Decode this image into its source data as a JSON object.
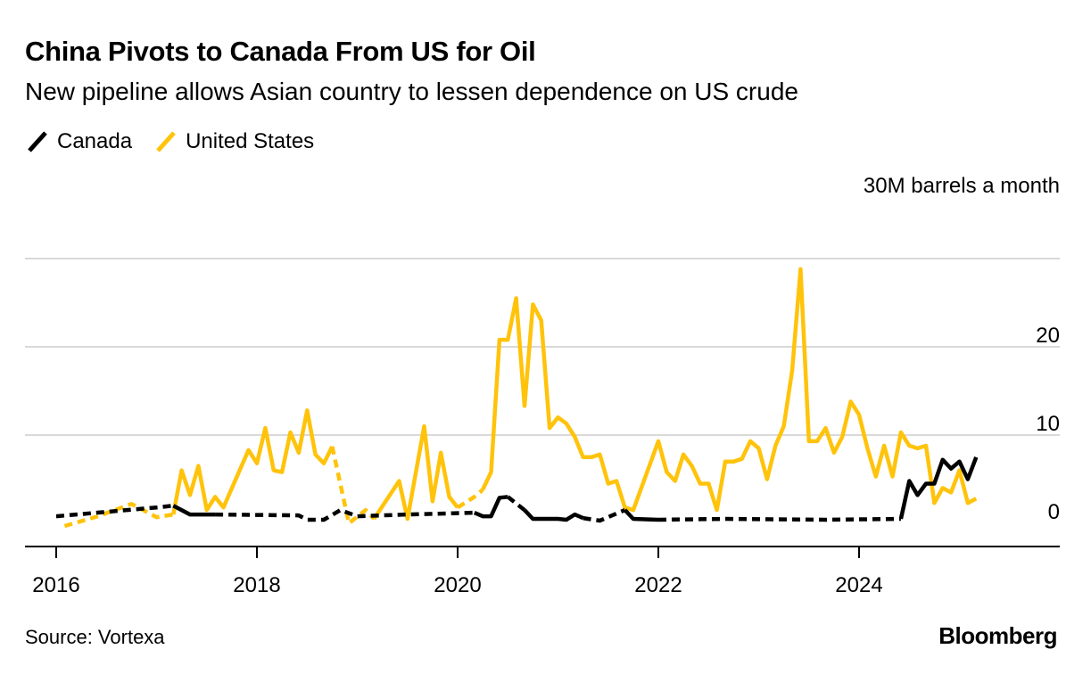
{
  "title": "China Pivots to Canada From US for Oil",
  "subtitle": "New pipeline allows Asian country to lessen dependence on US crude",
  "source": "Source: Vortexa",
  "logo": "Bloomberg",
  "colors": {
    "canada": "#000000",
    "us": "#FFC30B",
    "grid": "#d9d9d9",
    "axis": "#000000"
  },
  "chart_data": {
    "type": "line",
    "unit_label": "30M barrels a month",
    "x_ticks": [
      "2016",
      "2018",
      "2020",
      "2022",
      "2024"
    ],
    "y_ticks": [
      "0",
      "10",
      "20"
    ],
    "ylim": [
      -1,
      30
    ],
    "xlim": [
      "2015-10",
      "2025-12"
    ],
    "grid": true,
    "legend_position": "top-left",
    "series": [
      {
        "name": "Canada",
        "color": "#000000",
        "segments": [
          {
            "style": "dashed",
            "points": [
              [
                "2016-01",
                0.8
              ],
              [
                "2017-01",
                1.8
              ],
              [
                "2017-03",
                2.0
              ]
            ]
          },
          {
            "style": "solid",
            "points": [
              [
                "2017-03",
                2.0
              ],
              [
                "2017-05",
                1.0
              ],
              [
                "2017-08",
                1.0
              ]
            ]
          },
          {
            "style": "dashed",
            "points": [
              [
                "2017-08",
                1.0
              ],
              [
                "2018-06",
                0.9
              ],
              [
                "2018-07",
                0.4
              ],
              [
                "2018-09",
                0.4
              ],
              [
                "2018-11",
                1.5
              ],
              [
                "2019-01",
                0.8
              ],
              [
                "2019-07",
                1.0
              ],
              [
                "2020-03",
                1.2
              ]
            ]
          },
          {
            "style": "solid",
            "points": [
              [
                "2020-03",
                1.2
              ],
              [
                "2020-04",
                0.8
              ],
              [
                "2020-05",
                0.8
              ],
              [
                "2020-06",
                2.9
              ],
              [
                "2020-07",
                3.0
              ]
            ]
          },
          {
            "style": "dashed",
            "points": [
              [
                "2020-07",
                3.0
              ],
              [
                "2020-09",
                1.5
              ]
            ]
          },
          {
            "style": "solid",
            "points": [
              [
                "2020-09",
                1.5
              ],
              [
                "2020-10",
                0.5
              ],
              [
                "2021-01",
                0.5
              ],
              [
                "2021-02",
                0.4
              ],
              [
                "2021-03",
                1.0
              ],
              [
                "2021-04",
                0.6
              ]
            ]
          },
          {
            "style": "dashed",
            "points": [
              [
                "2021-04",
                0.6
              ],
              [
                "2021-06",
                0.3
              ],
              [
                "2021-09",
                1.5
              ]
            ]
          },
          {
            "style": "solid",
            "points": [
              [
                "2021-09",
                1.5
              ],
              [
                "2021-10",
                0.5
              ],
              [
                "2022-01",
                0.4
              ]
            ]
          },
          {
            "style": "dashed",
            "points": [
              [
                "2022-01",
                0.4
              ],
              [
                "2022-09",
                0.5
              ],
              [
                "2023-09",
                0.4
              ],
              [
                "2024-06",
                0.5
              ]
            ]
          },
          {
            "style": "solid",
            "points": [
              [
                "2024-06",
                0.5
              ],
              [
                "2024-07",
                4.8
              ],
              [
                "2024-08",
                3.2
              ],
              [
                "2024-09",
                4.5
              ],
              [
                "2024-10",
                4.5
              ],
              [
                "2024-11",
                7.2
              ],
              [
                "2024-12",
                6.2
              ],
              [
                "2025-01",
                7.0
              ],
              [
                "2025-02",
                5.0
              ],
              [
                "2025-03",
                7.5
              ]
            ]
          }
        ]
      },
      {
        "name": "United States",
        "color": "#FFC30B",
        "segments": [
          {
            "style": "dashed",
            "points": [
              [
                "2016-02",
                -0.3
              ],
              [
                "2016-06",
                0.8
              ],
              [
                "2016-10",
                2.2
              ],
              [
                "2017-01",
                0.7
              ],
              [
                "2017-03",
                1.0
              ]
            ]
          },
          {
            "style": "solid",
            "points": [
              [
                "2017-03",
                1.0
              ],
              [
                "2017-04",
                6.0
              ],
              [
                "2017-05",
                3.2
              ],
              [
                "2017-06",
                6.5
              ],
              [
                "2017-07",
                1.5
              ],
              [
                "2017-08",
                3.0
              ],
              [
                "2017-09",
                1.8
              ],
              [
                "2017-12",
                8.3
              ],
              [
                "2018-01",
                6.8
              ],
              [
                "2018-02",
                10.8
              ],
              [
                "2018-03",
                6.0
              ],
              [
                "2018-04",
                5.8
              ],
              [
                "2018-05",
                10.3
              ],
              [
                "2018-06",
                8.0
              ],
              [
                "2018-07",
                12.8
              ],
              [
                "2018-08",
                7.8
              ],
              [
                "2018-09",
                6.8
              ],
              [
                "2018-10",
                8.7
              ]
            ]
          },
          {
            "style": "dashed",
            "points": [
              [
                "2018-10",
                8.7
              ],
              [
                "2018-12",
                0.0
              ],
              [
                "2019-02",
                1.5
              ],
              [
                "2019-03",
                0.5
              ]
            ]
          },
          {
            "style": "solid",
            "points": [
              [
                "2019-03",
                0.5
              ],
              [
                "2019-06",
                4.8
              ],
              [
                "2019-07",
                0.5
              ],
              [
                "2019-09",
                11.0
              ],
              [
                "2019-10",
                2.5
              ],
              [
                "2019-11",
                8.0
              ],
              [
                "2019-12",
                3.0
              ],
              [
                "2020-01",
                1.8
              ]
            ]
          },
          {
            "style": "dashed",
            "points": [
              [
                "2020-01",
                1.8
              ],
              [
                "2020-03",
                3.0
              ],
              [
                "2020-04",
                3.8
              ]
            ]
          },
          {
            "style": "solid",
            "points": [
              [
                "2020-04",
                3.8
              ],
              [
                "2020-05",
                5.8
              ],
              [
                "2020-06",
                20.8
              ],
              [
                "2020-07",
                20.8
              ],
              [
                "2020-08",
                25.5
              ],
              [
                "2020-09",
                13.3
              ],
              [
                "2020-10",
                24.8
              ],
              [
                "2020-11",
                23.0
              ],
              [
                "2020-12",
                10.8
              ],
              [
                "2021-01",
                12.0
              ],
              [
                "2021-02",
                11.3
              ],
              [
                "2021-03",
                9.8
              ],
              [
                "2021-04",
                7.5
              ],
              [
                "2021-05",
                7.5
              ],
              [
                "2021-06",
                7.8
              ],
              [
                "2021-07",
                4.5
              ],
              [
                "2021-08",
                4.8
              ],
              [
                "2021-09",
                1.8
              ],
              [
                "2021-10",
                1.5
              ],
              [
                "2022-01",
                9.3
              ],
              [
                "2022-02",
                5.8
              ],
              [
                "2022-03",
                4.8
              ],
              [
                "2022-04",
                7.8
              ],
              [
                "2022-05",
                6.5
              ],
              [
                "2022-06",
                4.5
              ],
              [
                "2022-07",
                4.5
              ],
              [
                "2022-08",
                1.5
              ],
              [
                "2022-09",
                7.0
              ],
              [
                "2022-10",
                7.0
              ],
              [
                "2022-11",
                7.3
              ],
              [
                "2022-12",
                9.3
              ],
              [
                "2023-01",
                8.5
              ],
              [
                "2023-02",
                5.0
              ],
              [
                "2023-03",
                8.8
              ],
              [
                "2023-04",
                11.0
              ],
              [
                "2023-05",
                17.3
              ],
              [
                "2023-06",
                28.8
              ],
              [
                "2023-07",
                9.3
              ],
              [
                "2023-08",
                9.3
              ],
              [
                "2023-09",
                10.8
              ],
              [
                "2023-10",
                8.0
              ],
              [
                "2023-11",
                9.8
              ],
              [
                "2023-12",
                13.8
              ],
              [
                "2024-01",
                12.3
              ],
              [
                "2024-02",
                8.5
              ],
              [
                "2024-03",
                5.3
              ],
              [
                "2024-04",
                8.8
              ],
              [
                "2024-05",
                5.3
              ],
              [
                "2024-06",
                10.3
              ],
              [
                "2024-07",
                8.8
              ],
              [
                "2024-08",
                8.5
              ],
              [
                "2024-09",
                8.8
              ],
              [
                "2024-10",
                2.3
              ],
              [
                "2024-11",
                4.0
              ],
              [
                "2024-12",
                3.5
              ],
              [
                "2025-01",
                6.0
              ],
              [
                "2025-02",
                2.3
              ],
              [
                "2025-03",
                2.8
              ]
            ]
          }
        ]
      }
    ]
  }
}
